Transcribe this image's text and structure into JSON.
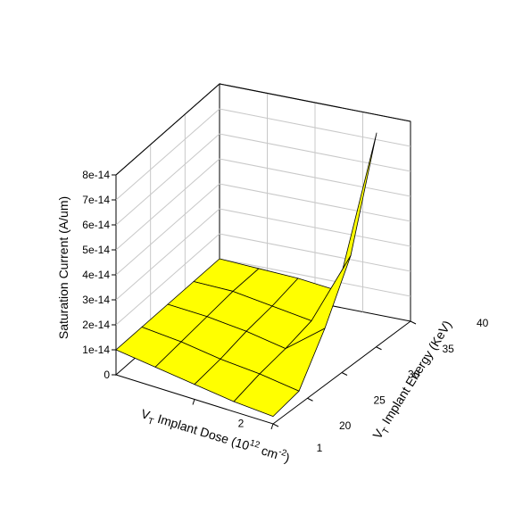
{
  "chart_data": {
    "type": "surface",
    "title": "",
    "zlabel": "Saturation Current (A/um)",
    "xlabel": {
      "pre": "V",
      "sub": "T",
      "post": " Implant Dose (10",
      "sup": "12",
      "post2": " cm",
      "sup2": "-2",
      "post3": ")"
    },
    "ylabel": {
      "pre": "V",
      "sub": "T",
      "post": " Implant Energy (KeV)"
    },
    "z_ticks": [
      "0",
      "1e-14",
      "2e-14",
      "3e-14",
      "4e-14",
      "5e-14",
      "6e-14",
      "7e-14",
      "8e-14"
    ],
    "z_range": [
      0,
      8e-14
    ],
    "x_ticks": [
      "2",
      "1"
    ],
    "y_ticks": [
      "20",
      "25",
      "30",
      "35",
      "40"
    ],
    "surface_color": "#ffff00",
    "grid": true,
    "dose_levels": [
      3,
      2.5,
      2,
      1.5,
      1
    ],
    "energy_levels": [
      20,
      25,
      30,
      35,
      40
    ],
    "values": [
      [
        1e-14,
        1e-14,
        1e-14,
        1e-14,
        1e-14
      ],
      [
        8e-15,
        9e-15,
        1e-14,
        1.1e-14,
        1.1e-14
      ],
      [
        6e-15,
        7e-15,
        9e-15,
        1e-14,
        1.2e-14
      ],
      [
        4e-15,
        6e-15,
        7e-15,
        9e-15,
        1.2e-14
      ],
      [
        3e-15,
        4e-15,
        2e-14,
        4e-14,
        8e-14
      ]
    ]
  }
}
